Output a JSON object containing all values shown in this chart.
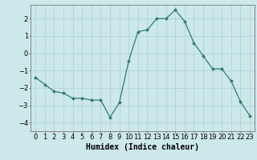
{
  "x": [
    0,
    1,
    2,
    3,
    4,
    5,
    6,
    7,
    8,
    9,
    10,
    11,
    12,
    13,
    14,
    15,
    16,
    17,
    18,
    19,
    20,
    21,
    22,
    23
  ],
  "y": [
    -1.4,
    -1.8,
    -2.2,
    -2.3,
    -2.6,
    -2.6,
    -2.7,
    -2.7,
    -3.7,
    -2.85,
    -0.45,
    1.25,
    1.35,
    2.0,
    2.0,
    2.5,
    1.85,
    0.6,
    -0.15,
    -0.9,
    -0.9,
    -1.6,
    -2.8,
    -3.6
  ],
  "line_color": "#2e7d6e",
  "marker": "D",
  "marker_size": 2,
  "bg_color": "#cde8ea",
  "grid_color": "#aed4d8",
  "ylabel_ticks": [
    2,
    1,
    0,
    -1,
    -2,
    -3,
    -4
  ],
  "ylim": [
    -4.5,
    2.8
  ],
  "xlim": [
    -0.5,
    23.5
  ],
  "xlabel": "Humidex (Indice chaleur)",
  "xlabel_fontsize": 7,
  "tick_fontsize": 6,
  "title": ""
}
